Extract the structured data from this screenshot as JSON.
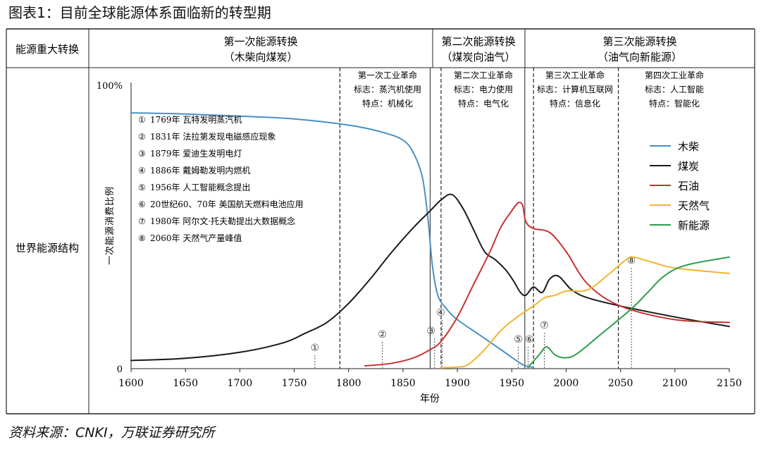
{
  "figure": {
    "caption": "图表1：目前全球能源体系面临新的转型期",
    "source": "资料来源：CNKI，万联证券研究所"
  },
  "table": {
    "row1_label": "能源重大转换",
    "row2_label": "世界能源结构",
    "transitions": [
      {
        "title": "第一次能源转换",
        "sub": "（木柴向煤炭）"
      },
      {
        "title": "第二次能源转换",
        "sub": "（煤炭向油气）"
      },
      {
        "title": "第三次能源转换",
        "sub": "（油气向新能源）"
      }
    ]
  },
  "revolutions": [
    {
      "lines": [
        "第一次工业革命",
        "标志：蒸汽机使用",
        "特点：机械化"
      ]
    },
    {
      "lines": [
        "第二次工业革命",
        "标志：电力使用",
        "特点：电气化"
      ]
    },
    {
      "lines": [
        "第三次工业革命",
        "标志：计算机互联网",
        "特点：信息化"
      ]
    },
    {
      "lines": [
        "第四次工业革命",
        "标志：人工智能",
        "特点：智能化"
      ]
    }
  ],
  "events": [
    {
      "marker": "①",
      "year": 1769,
      "text": "1769年 瓦特发明蒸汽机"
    },
    {
      "marker": "②",
      "year": 1831,
      "text": "1831年 法拉第发现电磁感应现象"
    },
    {
      "marker": "③",
      "year": 1879,
      "text": "1879年 爱迪生发明电灯"
    },
    {
      "marker": "④",
      "year": 1886,
      "text": "1886年 戴姆勒发明内燃机"
    },
    {
      "marker": "⑤",
      "year": 1956,
      "text": "1956年 人工智能概念提出"
    },
    {
      "marker": "⑥",
      "year": 1965,
      "text": "20世纪60、70年 美国航天燃料电池应用"
    },
    {
      "marker": "⑦",
      "year": 1980,
      "text": "1980年 阿尔文·托夫勒提出大数据概念"
    },
    {
      "marker": "⑧",
      "year": 2060,
      "text": "2060年 天然气产量峰值"
    }
  ],
  "chart_data": {
    "type": "line",
    "xlabel": "年份",
    "ylabel": "一次能源消费比例",
    "xlim": [
      1600,
      2150
    ],
    "ylim": [
      0,
      100
    ],
    "x_ticks": [
      1600,
      1650,
      1700,
      1750,
      1800,
      1850,
      1900,
      1950,
      2000,
      2050,
      2100,
      2150
    ],
    "y_tick_labels": {
      "top": "100%",
      "bottom": "0"
    },
    "transition_boundaries": [
      1875,
      1962
    ],
    "revolution_boundaries": [
      1792,
      1885,
      1970,
      2048
    ],
    "grid": false,
    "legend_position": "right",
    "series": [
      {
        "name": "木柴",
        "color": "#4a90c4",
        "points": [
          [
            1600,
            94
          ],
          [
            1650,
            93.6
          ],
          [
            1700,
            92.8
          ],
          [
            1750,
            91.8
          ],
          [
            1800,
            89.5
          ],
          [
            1830,
            87
          ],
          [
            1850,
            84
          ],
          [
            1860,
            79
          ],
          [
            1868,
            70
          ],
          [
            1873,
            55
          ],
          [
            1877,
            38
          ],
          [
            1882,
            27
          ],
          [
            1890,
            22
          ],
          [
            1900,
            18
          ],
          [
            1920,
            12.5
          ],
          [
            1940,
            7
          ],
          [
            1960,
            1.5
          ],
          [
            1970,
            0.5
          ]
        ]
      },
      {
        "name": "煤炭",
        "color": "#1a1a1a",
        "points": [
          [
            1600,
            3
          ],
          [
            1650,
            3.8
          ],
          [
            1700,
            6
          ],
          [
            1740,
            9.5
          ],
          [
            1760,
            13
          ],
          [
            1780,
            17
          ],
          [
            1800,
            24
          ],
          [
            1820,
            33
          ],
          [
            1840,
            43
          ],
          [
            1860,
            52
          ],
          [
            1875,
            58
          ],
          [
            1885,
            62
          ],
          [
            1895,
            64
          ],
          [
            1905,
            59
          ],
          [
            1915,
            51
          ],
          [
            1925,
            43
          ],
          [
            1935,
            40
          ],
          [
            1945,
            36
          ],
          [
            1952,
            32
          ],
          [
            1958,
            28
          ],
          [
            1963,
            27
          ],
          [
            1970,
            30
          ],
          [
            1978,
            28
          ],
          [
            1985,
            33
          ],
          [
            1993,
            34
          ],
          [
            2005,
            29
          ],
          [
            2020,
            26
          ],
          [
            2050,
            23
          ],
          [
            2100,
            19
          ],
          [
            2150,
            15.5
          ]
        ]
      },
      {
        "name": "石油",
        "color": "#c83232",
        "points": [
          [
            1815,
            1
          ],
          [
            1840,
            2
          ],
          [
            1860,
            4
          ],
          [
            1875,
            7
          ],
          [
            1885,
            10
          ],
          [
            1900,
            19
          ],
          [
            1915,
            31
          ],
          [
            1930,
            43
          ],
          [
            1940,
            52
          ],
          [
            1950,
            58
          ],
          [
            1956,
            61
          ],
          [
            1960,
            60
          ],
          [
            1963,
            54
          ],
          [
            1970,
            51.5
          ],
          [
            1985,
            50
          ],
          [
            2000,
            43
          ],
          [
            2020,
            31
          ],
          [
            2050,
            23
          ],
          [
            2100,
            18
          ],
          [
            2150,
            17
          ]
        ]
      },
      {
        "name": "天然气",
        "color": "#f2b430",
        "points": [
          [
            1885,
            0.3
          ],
          [
            1900,
            0.6
          ],
          [
            1910,
            1.5
          ],
          [
            1925,
            7
          ],
          [
            1940,
            14
          ],
          [
            1955,
            19
          ],
          [
            1970,
            23
          ],
          [
            1980,
            26
          ],
          [
            1990,
            27
          ],
          [
            2000,
            28.5
          ],
          [
            2020,
            29
          ],
          [
            2040,
            35
          ],
          [
            2055,
            40
          ],
          [
            2062,
            41
          ],
          [
            2080,
            39
          ],
          [
            2100,
            37
          ],
          [
            2150,
            35
          ]
        ]
      },
      {
        "name": "新能源",
        "color": "#2e9e4e",
        "points": [
          [
            1965,
            0.5
          ],
          [
            1975,
            5
          ],
          [
            1982,
            8
          ],
          [
            1990,
            5
          ],
          [
            2000,
            4
          ],
          [
            2010,
            5.5
          ],
          [
            2030,
            12
          ],
          [
            2060,
            22
          ],
          [
            2075,
            28
          ],
          [
            2090,
            34
          ],
          [
            2110,
            38
          ],
          [
            2150,
            41
          ]
        ]
      }
    ]
  }
}
